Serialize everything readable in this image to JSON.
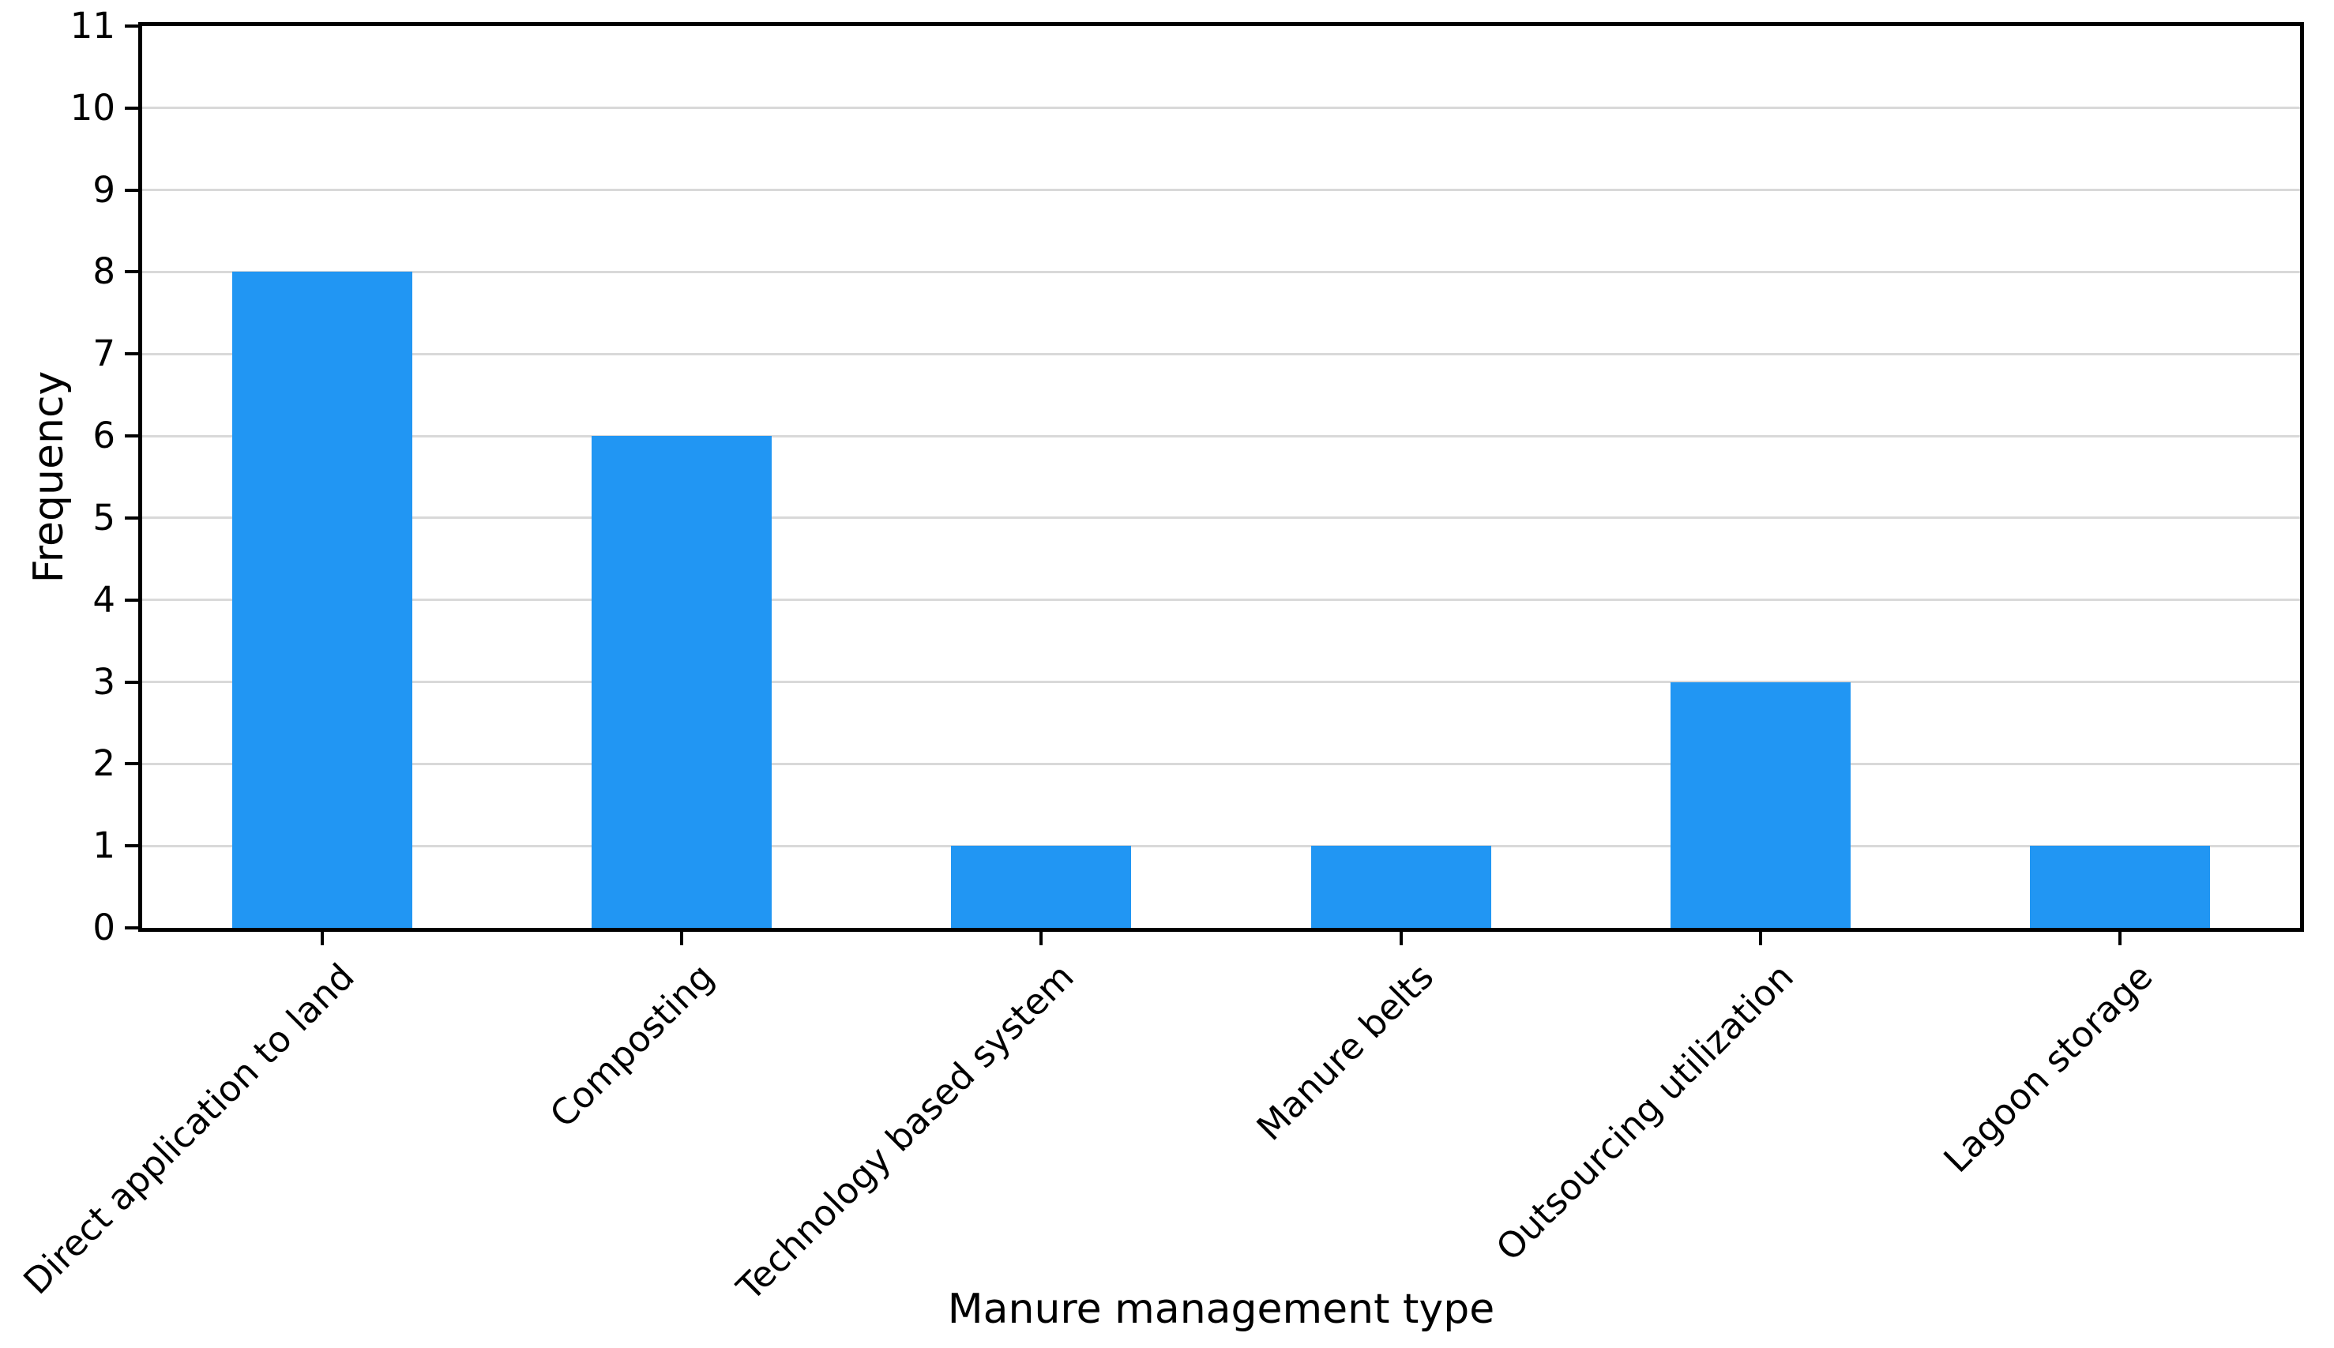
{
  "chart_data": {
    "type": "bar",
    "title": "",
    "xlabel": "Manure management type",
    "ylabel": "Frequency",
    "categories": [
      "Direct application to land",
      "Composting",
      "Technology based system",
      "Manure belts",
      "Outsourcing utilization",
      "Lagoon storage"
    ],
    "values": [
      8,
      6,
      1,
      1,
      3,
      1
    ],
    "ylim": [
      0,
      11
    ],
    "yticks": [
      0,
      1,
      2,
      3,
      4,
      5,
      6,
      7,
      8,
      9,
      10,
      11
    ],
    "bar_color": "#2196F3",
    "gridline_color": "#d9d9d9",
    "spine_color": "#000000",
    "background_color": "#ffffff",
    "grid": "horizontal-only",
    "legend": "none",
    "x_tick_label_rotation_deg": 45
  }
}
